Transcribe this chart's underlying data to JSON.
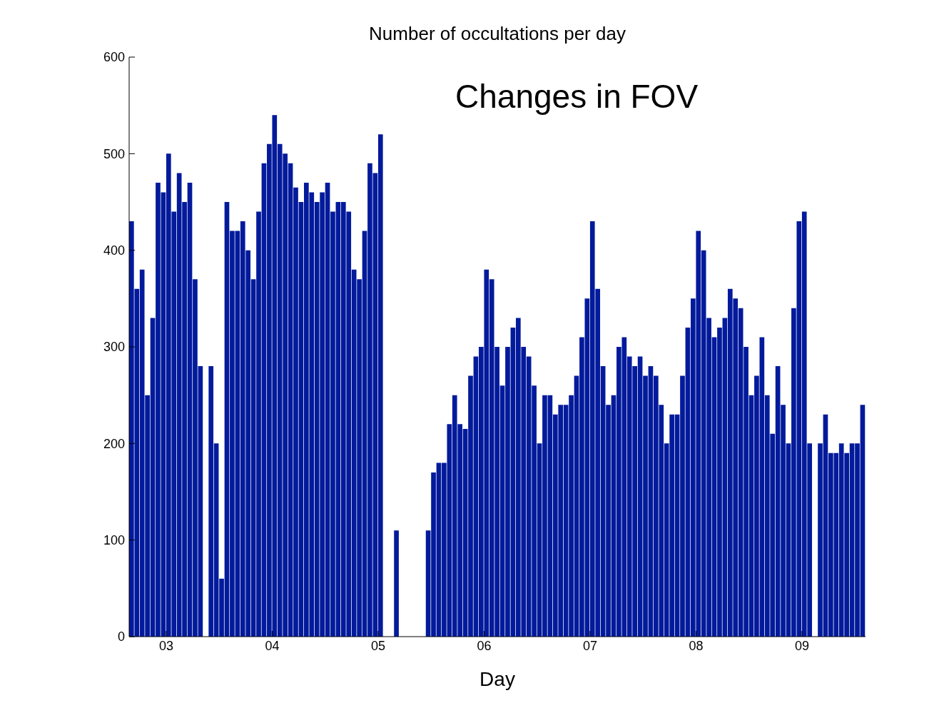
{
  "chart_data": {
    "type": "histogram",
    "title": "Number of occultations per day",
    "xlabel": "Day",
    "annotations": [
      "Changes in FOV"
    ],
    "color": "#021a9b",
    "bins": [
      2.65,
      2.7,
      2.75,
      2.8,
      2.85,
      2.9,
      2.95,
      3.0,
      3.05,
      3.1,
      3.15,
      3.2,
      3.25,
      3.3,
      3.35,
      3.4,
      3.45,
      3.5,
      3.55,
      3.6,
      3.65,
      3.7,
      3.75,
      3.8,
      3.85,
      3.9,
      3.95,
      4.0,
      4.05,
      4.1,
      4.15,
      4.2,
      4.25,
      4.3,
      4.35,
      4.4,
      4.45,
      4.5,
      4.55,
      4.6,
      4.65,
      4.7,
      4.75,
      4.8,
      4.85,
      4.9,
      4.95,
      5.0,
      5.05,
      5.1,
      5.15,
      5.2,
      5.25,
      5.3,
      5.35,
      5.4,
      5.45,
      5.5,
      5.55,
      5.6,
      5.65,
      5.7,
      5.75,
      5.8,
      5.85,
      5.9,
      5.95,
      6.0,
      6.05,
      6.1,
      6.15,
      6.2,
      6.25,
      6.3,
      6.35,
      6.4,
      6.45,
      6.5,
      6.55,
      6.6,
      6.65,
      6.7,
      6.75,
      6.8,
      6.85,
      6.9,
      6.95,
      7.0,
      7.05,
      7.1,
      7.15,
      7.2,
      7.25,
      7.3,
      7.35,
      7.4,
      7.45,
      7.5,
      7.55,
      7.6,
      7.65,
      7.7,
      7.75,
      7.8,
      7.85,
      7.9,
      7.95,
      8.0,
      8.05,
      8.1,
      8.15,
      8.2,
      8.25,
      8.3,
      8.35,
      8.4,
      8.45,
      8.5,
      8.55,
      8.6,
      8.65,
      8.7,
      8.75,
      8.8,
      8.85,
      8.9,
      8.95,
      9.0,
      9.05,
      9.1,
      9.15,
      9.2,
      9.25,
      9.3,
      9.35,
      9.4,
      9.45,
      9.5,
      9.55,
      9.6
    ],
    "values": [
      430,
      360,
      380,
      250,
      330,
      470,
      460,
      500,
      440,
      480,
      450,
      470,
      370,
      280,
      0,
      280,
      200,
      60,
      450,
      420,
      420,
      430,
      400,
      370,
      440,
      490,
      510,
      540,
      510,
      500,
      490,
      465,
      450,
      470,
      460,
      450,
      460,
      470,
      440,
      450,
      450,
      440,
      380,
      370,
      420,
      490,
      480,
      520,
      0,
      0,
      110,
      0,
      0,
      0,
      0,
      0,
      110,
      170,
      180,
      180,
      220,
      250,
      220,
      215,
      270,
      290,
      300,
      380,
      370,
      300,
      260,
      300,
      320,
      330,
      300,
      290,
      260,
      200,
      250,
      250,
      230,
      240,
      240,
      250,
      270,
      310,
      350,
      430,
      360,
      280,
      240,
      250,
      300,
      310,
      290,
      280,
      290,
      270,
      280,
      270,
      240,
      200,
      230,
      230,
      270,
      320,
      350,
      420,
      400,
      330,
      310,
      320,
      330,
      360,
      350,
      340,
      300,
      250,
      270,
      310,
      250,
      210,
      280,
      240,
      200,
      340,
      430,
      440,
      200,
      0,
      200,
      230,
      190,
      190,
      200,
      190,
      200,
      200,
      240
    ],
    "xlim": [
      2.65,
      9.6
    ],
    "xticks": [
      {
        "value": 3,
        "label": "03"
      },
      {
        "value": 4,
        "label": "04"
      },
      {
        "value": 5,
        "label": "05"
      },
      {
        "value": 6,
        "label": "06"
      },
      {
        "value": 7,
        "label": "07"
      },
      {
        "value": 8,
        "label": "08"
      },
      {
        "value": 9,
        "label": "09"
      }
    ],
    "ylim": [
      0,
      600
    ],
    "yticks": [
      0,
      100,
      200,
      300,
      400,
      500,
      600
    ]
  }
}
